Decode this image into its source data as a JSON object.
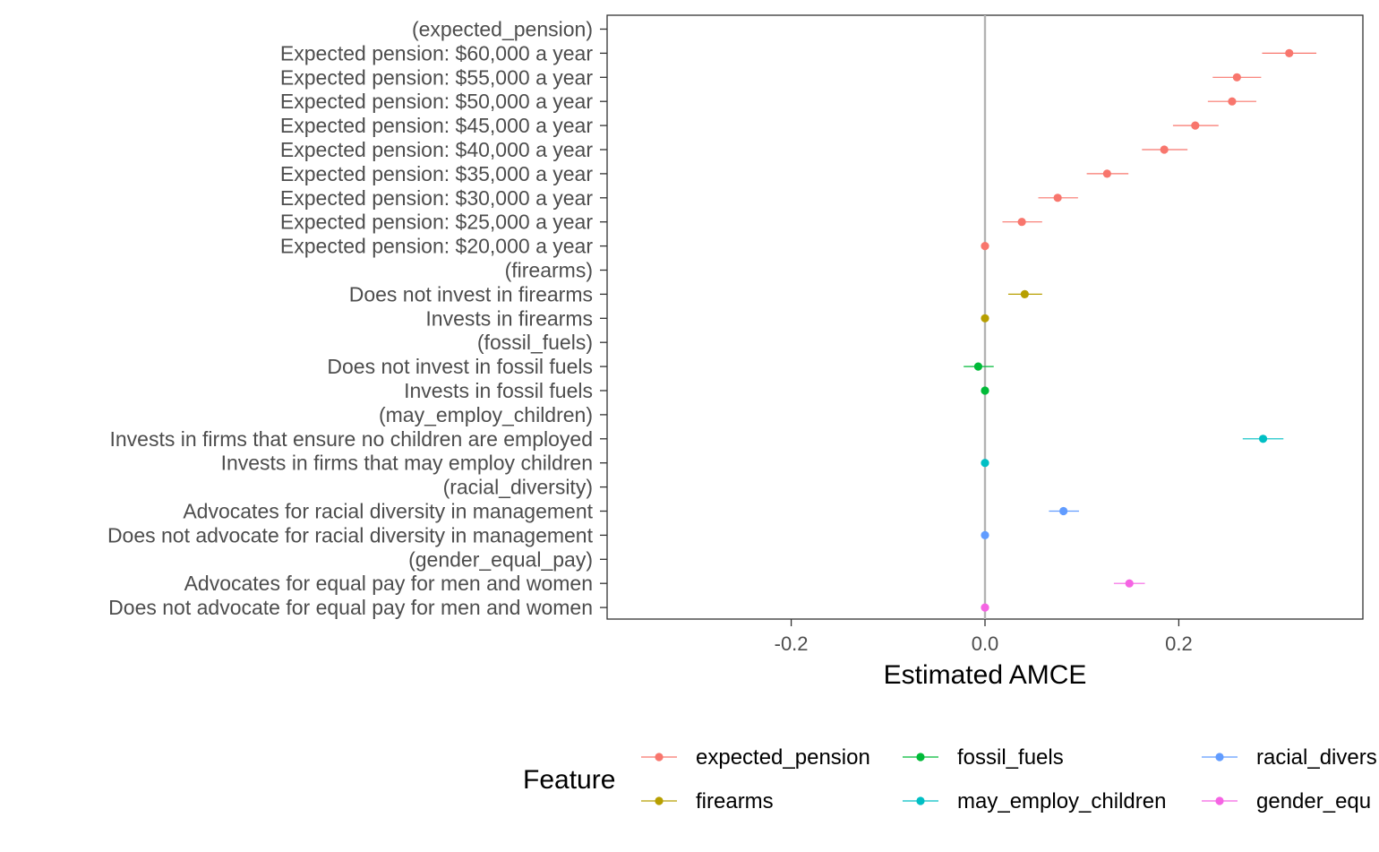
{
  "chart_data": {
    "type": "scatter",
    "xlabel": "Estimated AMCE",
    "ylabel": "",
    "xlim": [
      -0.39,
      0.39
    ],
    "x_ticks": [
      {
        "value": -0.2,
        "label": "-0.2"
      },
      {
        "value": 0.0,
        "label": "0.0"
      },
      {
        "value": 0.2,
        "label": "0.2"
      }
    ],
    "reference_line": 0,
    "grid": false,
    "legend": {
      "title": "Feature",
      "placement": "bottom",
      "entries": [
        "expected_pension",
        "firearms",
        "fossil_fuels",
        "may_employ_children",
        "racial_diversity",
        "gender_equal_pay"
      ],
      "visible_labels": [
        "expected_pension",
        "firearms",
        "fossil_fuels",
        "may_employ_children",
        "racial_divers",
        "gender_equ"
      ]
    },
    "colors": {
      "expected_pension": "#F8766D",
      "firearms": "#B79F00",
      "fossil_fuels": "#00BA38",
      "may_employ_children": "#00BFC4",
      "racial_diversity": "#619CFF",
      "gender_equal_pay": "#F564E3"
    },
    "rows": [
      {
        "label": "(expected_pension)",
        "feature": "expected_pension",
        "estimate": null
      },
      {
        "label": "Expected pension: $60,000 a year",
        "feature": "expected_pension",
        "estimate": 0.314,
        "lower": 0.286,
        "upper": 0.342
      },
      {
        "label": "Expected pension: $55,000 a year",
        "feature": "expected_pension",
        "estimate": 0.26,
        "lower": 0.235,
        "upper": 0.285
      },
      {
        "label": "Expected pension: $50,000 a year",
        "feature": "expected_pension",
        "estimate": 0.255,
        "lower": 0.23,
        "upper": 0.28
      },
      {
        "label": "Expected pension: $45,000 a year",
        "feature": "expected_pension",
        "estimate": 0.217,
        "lower": 0.194,
        "upper": 0.241
      },
      {
        "label": "Expected pension: $40,000 a year",
        "feature": "expected_pension",
        "estimate": 0.185,
        "lower": 0.162,
        "upper": 0.209
      },
      {
        "label": "Expected pension: $35,000 a year",
        "feature": "expected_pension",
        "estimate": 0.126,
        "lower": 0.105,
        "upper": 0.148
      },
      {
        "label": "Expected pension: $30,000 a year",
        "feature": "expected_pension",
        "estimate": 0.075,
        "lower": 0.055,
        "upper": 0.096
      },
      {
        "label": "Expected pension: $25,000 a year",
        "feature": "expected_pension",
        "estimate": 0.038,
        "lower": 0.018,
        "upper": 0.059
      },
      {
        "label": "Expected pension: $20,000 a year",
        "feature": "expected_pension",
        "estimate": 0.0,
        "lower": 0.0,
        "upper": 0.0
      },
      {
        "label": "(firearms)",
        "feature": "firearms",
        "estimate": null
      },
      {
        "label": "Does not invest in firearms",
        "feature": "firearms",
        "estimate": 0.041,
        "lower": 0.024,
        "upper": 0.059
      },
      {
        "label": "Invests in firearms",
        "feature": "firearms",
        "estimate": 0.0,
        "lower": 0.0,
        "upper": 0.0
      },
      {
        "label": "(fossil_fuels)",
        "feature": "fossil_fuels",
        "estimate": null
      },
      {
        "label": "Does not invest in fossil fuels",
        "feature": "fossil_fuels",
        "estimate": -0.007,
        "lower": -0.022,
        "upper": 0.009
      },
      {
        "label": "Invests in fossil fuels",
        "feature": "fossil_fuels",
        "estimate": 0.0,
        "lower": 0.0,
        "upper": 0.0
      },
      {
        "label": "(may_employ_children)",
        "feature": "may_employ_children",
        "estimate": null
      },
      {
        "label": "Invests in firms that ensure no children are employed",
        "feature": "may_employ_children",
        "estimate": 0.287,
        "lower": 0.266,
        "upper": 0.308
      },
      {
        "label": "Invests in firms that may employ children",
        "feature": "may_employ_children",
        "estimate": 0.0,
        "lower": 0.0,
        "upper": 0.0
      },
      {
        "label": "(racial_diversity)",
        "feature": "racial_diversity",
        "estimate": null
      },
      {
        "label": "Advocates for racial diversity in management",
        "feature": "racial_diversity",
        "estimate": 0.081,
        "lower": 0.066,
        "upper": 0.097
      },
      {
        "label": "Does not advocate for racial diversity in management",
        "feature": "racial_diversity",
        "estimate": 0.0,
        "lower": 0.0,
        "upper": 0.0
      },
      {
        "label": "(gender_equal_pay)",
        "feature": "gender_equal_pay",
        "estimate": null
      },
      {
        "label": "Advocates for equal pay for men and women",
        "feature": "gender_equal_pay",
        "estimate": 0.149,
        "lower": 0.133,
        "upper": 0.165
      },
      {
        "label": "Does not advocate for equal pay for men and women",
        "feature": "gender_equal_pay",
        "estimate": 0.0,
        "lower": 0.0,
        "upper": 0.0
      }
    ]
  }
}
